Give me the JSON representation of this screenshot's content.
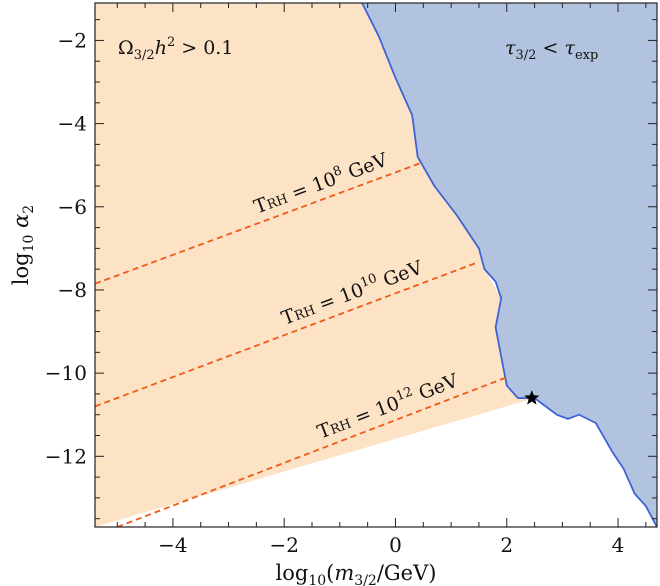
{
  "chart_data": {
    "type": "area",
    "xlabel": "log₁₀(m₃/₂/GeV)",
    "ylabel": "log₁₀ α₂",
    "xlim": [
      -5.4,
      4.7
    ],
    "ylim": [
      -13.7,
      -1.1
    ],
    "xticks": [
      -4,
      -2,
      0,
      2,
      4
    ],
    "yticks": [
      -12,
      -10,
      -8,
      -6,
      -4,
      -2
    ],
    "xtick_labels": [
      "−4",
      "−2",
      "0",
      "2",
      "4"
    ],
    "ytick_labels": [
      "−12",
      "−10",
      "−8",
      "−6",
      "−4",
      "−2"
    ],
    "colors": {
      "overabundance_region": "#fde3c5",
      "lifetime_region": "#b1c3de",
      "boundary": "#3f63d6",
      "trh_lines": "#f05a18",
      "star": "#000000"
    },
    "regions": [
      {
        "label": "Ω3/2h2 > 0.1",
        "polygon": [
          [
            -5.4,
            -1.1
          ],
          [
            -0.6,
            -1.1
          ],
          [
            -0.3,
            -1.9
          ],
          [
            0.0,
            -2.9
          ],
          [
            0.3,
            -3.8
          ],
          [
            0.4,
            -4.8
          ],
          [
            1.1,
            -6.2
          ],
          [
            1.3,
            -6.6
          ],
          [
            1.5,
            -7.0
          ],
          [
            1.6,
            -7.5
          ],
          [
            1.9,
            -8.2
          ],
          [
            1.8,
            -8.9
          ],
          [
            1.9,
            -9.6
          ],
          [
            2.0,
            -10.3
          ],
          [
            2.2,
            -10.6
          ],
          [
            2.5,
            -10.6
          ],
          [
            -5.4,
            -13.7
          ]
        ]
      },
      {
        "label": "τ3/2 < τexp",
        "boundary": [
          [
            -0.6,
            -1.1
          ],
          [
            -0.3,
            -1.9
          ],
          [
            0.0,
            -2.9
          ],
          [
            0.3,
            -3.8
          ],
          [
            0.4,
            -4.8
          ],
          [
            0.7,
            -5.5
          ],
          [
            1.1,
            -6.2
          ],
          [
            1.3,
            -6.6
          ],
          [
            1.5,
            -7.0
          ],
          [
            1.6,
            -7.5
          ],
          [
            1.8,
            -7.8
          ],
          [
            1.9,
            -8.2
          ],
          [
            1.8,
            -8.9
          ],
          [
            1.9,
            -9.6
          ],
          [
            2.0,
            -10.3
          ],
          [
            2.2,
            -10.6
          ],
          [
            2.5,
            -10.6
          ],
          [
            2.7,
            -10.8
          ],
          [
            2.9,
            -11.0
          ],
          [
            3.1,
            -11.1
          ],
          [
            3.3,
            -11.0
          ],
          [
            3.6,
            -11.2
          ],
          [
            3.9,
            -11.9
          ],
          [
            4.1,
            -12.3
          ],
          [
            4.3,
            -12.9
          ],
          [
            4.5,
            -13.2
          ],
          [
            4.7,
            -13.7
          ]
        ]
      }
    ],
    "lines": [
      {
        "label": "TRH = 108 GeV",
        "main": "T",
        "sub": "RH",
        "mid": " = 10",
        "sup": "8",
        "unit": " GeV",
        "x": [
          -5.4,
          0.45
        ],
        "y": [
          -7.85,
          -4.95
        ]
      },
      {
        "label": "TRH = 1010 GeV",
        "main": "T",
        "sub": "RH",
        "mid": " = 10",
        "sup": "10",
        "unit": " GeV",
        "x": [
          -5.4,
          1.45
        ],
        "y": [
          -10.8,
          -7.35
        ]
      },
      {
        "label": "TRH = 1012 GeV",
        "main": "T",
        "sub": "RH",
        "mid": " = 10",
        "sup": "12",
        "unit": " GeV",
        "x": [
          -5.0,
          2.0
        ],
        "y": [
          -13.7,
          -10.1
        ]
      }
    ],
    "point": {
      "marker": "star",
      "x": 2.45,
      "y": -10.6
    },
    "annotations": [
      {
        "text": "Ω3/2h2 > 0.1"
      },
      {
        "text": "τ3/2 < τexp"
      }
    ]
  }
}
